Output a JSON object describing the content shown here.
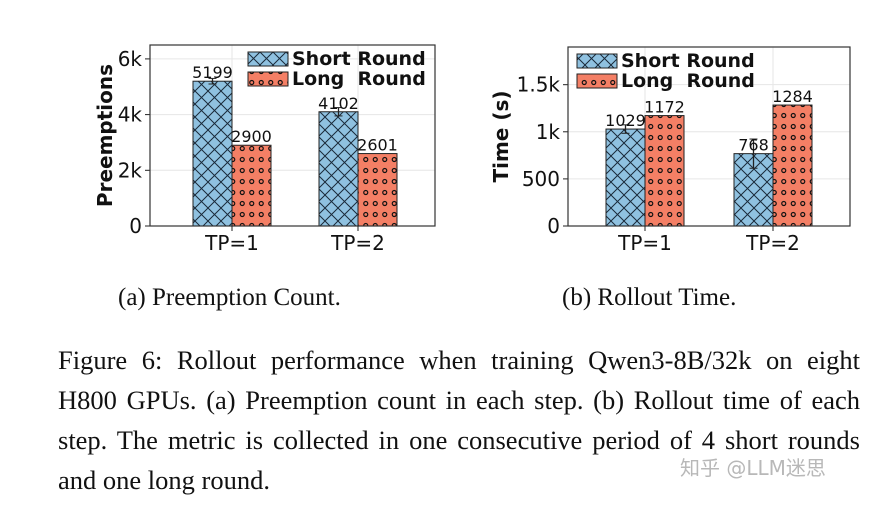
{
  "colors": {
    "short": "#8fc1e0",
    "long": "#f47f65",
    "edge": "#111111",
    "grid": "#e6e6e6"
  },
  "chart_data": [
    {
      "type": "bar",
      "title": "",
      "ylabel": "Preemptions",
      "xlabel": "",
      "categories": [
        "TP=1",
        "TP=2"
      ],
      "ylim": [
        0,
        6499
      ],
      "yticks": [
        0,
        2000,
        4000,
        6000
      ],
      "ytick_labels": [
        "0",
        "2k",
        "4k",
        "6k"
      ],
      "grid": true,
      "legend": "top-right",
      "series": [
        {
          "name": "Short Round",
          "values": [
            5199,
            4102
          ],
          "errors": [
            100,
            150
          ],
          "labels": [
            "5199",
            "4102"
          ],
          "hatch": "cross"
        },
        {
          "name": "Long  Round",
          "values": [
            2900,
            2601
          ],
          "errors": [
            0,
            0
          ],
          "labels": [
            "2900",
            "2601"
          ],
          "hatch": "circles"
        }
      ]
    },
    {
      "type": "bar",
      "title": "",
      "ylabel": "Time (s)",
      "xlabel": "",
      "categories": [
        "TP=1",
        "TP=2"
      ],
      "ylim": [
        0,
        1900
      ],
      "yticks": [
        0,
        500,
        1000,
        1500
      ],
      "ytick_labels": [
        "0",
        "500",
        "1k",
        "1.5k"
      ],
      "grid": true,
      "legend": "top-left",
      "series": [
        {
          "name": "Short Round",
          "values": [
            1029,
            768
          ],
          "errors": [
            45,
            155
          ],
          "labels": [
            "1029",
            "768"
          ],
          "hatch": "cross"
        },
        {
          "name": "Long  Round",
          "values": [
            1172,
            1284
          ],
          "errors": [
            0,
            0
          ],
          "labels": [
            "1172",
            "1284"
          ],
          "hatch": "circles"
        }
      ]
    }
  ],
  "captions": {
    "a": "(a) Preemption Count.",
    "b": "(b) Rollout Time.",
    "figure": "Figure 6: Rollout performance when training Qwen3-8B/32k on eight H800 GPUs. (a) Preemption count in each step. (b) Rollout time of each step. The metric is collected in one consecutive period of 4 short rounds and one long round."
  },
  "watermark": "知乎 @LLM迷思"
}
